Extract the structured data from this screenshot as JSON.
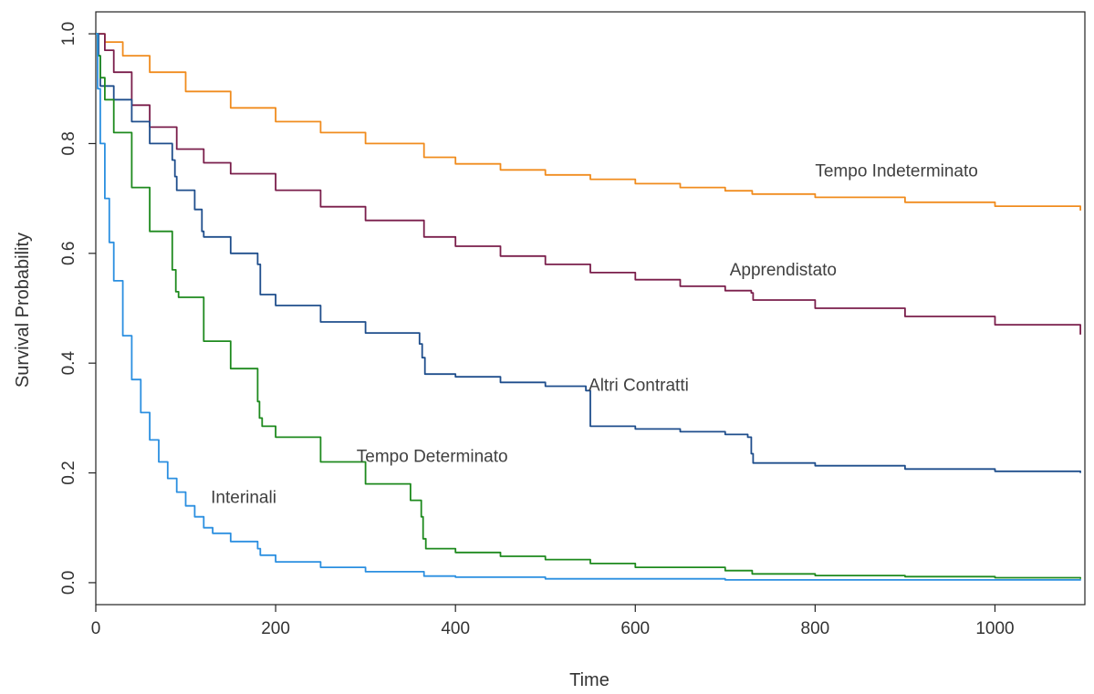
{
  "chart_data": {
    "type": "line",
    "title": "",
    "xlabel": "Time",
    "ylabel": "Survival Probability",
    "xlim": [
      0,
      1100
    ],
    "ylim": [
      -0.04,
      1.04
    ],
    "xticks": [
      0,
      200,
      400,
      600,
      800,
      1000
    ],
    "yticks": [
      0.0,
      0.2,
      0.4,
      0.6,
      0.8,
      1.0
    ],
    "xtick_labels": [
      "0",
      "200",
      "400",
      "600",
      "800",
      "1000"
    ],
    "ytick_labels": [
      "0.0",
      "0.2",
      "0.4",
      "0.6",
      "0.8",
      "1.0"
    ],
    "grid": false,
    "legend": "none (curves labeled directly)",
    "series": [
      {
        "name": "Tempo Indeterminato",
        "color": "#f08c1e",
        "label_anchor": [
          800,
          0.74
        ],
        "x": [
          0,
          10,
          30,
          60,
          100,
          150,
          200,
          250,
          300,
          365,
          400,
          450,
          500,
          550,
          600,
          650,
          700,
          730,
          800,
          900,
          1000,
          1095
        ],
        "y": [
          1.0,
          0.985,
          0.96,
          0.93,
          0.895,
          0.865,
          0.84,
          0.82,
          0.8,
          0.775,
          0.763,
          0.752,
          0.743,
          0.735,
          0.727,
          0.72,
          0.714,
          0.708,
          0.702,
          0.693,
          0.686,
          0.678
        ]
      },
      {
        "name": "Apprendistato",
        "color": "#7a1e4b",
        "label_anchor": [
          705,
          0.56
        ],
        "x": [
          0,
          10,
          20,
          40,
          60,
          90,
          120,
          150,
          200,
          250,
          300,
          365,
          400,
          450,
          500,
          550,
          600,
          650,
          700,
          729,
          731,
          800,
          900,
          1000,
          1095
        ],
        "y": [
          1.0,
          0.97,
          0.93,
          0.87,
          0.83,
          0.79,
          0.765,
          0.745,
          0.715,
          0.685,
          0.66,
          0.63,
          0.613,
          0.595,
          0.58,
          0.565,
          0.552,
          0.54,
          0.532,
          0.528,
          0.515,
          0.5,
          0.485,
          0.47,
          0.452
        ]
      },
      {
        "name": "Altri Contratti",
        "color": "#1f4e8c",
        "label_anchor": [
          548,
          0.35
        ],
        "x": [
          0,
          3,
          5,
          20,
          40,
          60,
          85,
          88,
          90,
          110,
          118,
          120,
          150,
          180,
          183,
          200,
          250,
          300,
          360,
          363,
          366,
          400,
          450,
          500,
          545,
          550,
          600,
          650,
          700,
          725,
          729,
          731,
          800,
          900,
          1000,
          1095
        ],
        "y": [
          1.0,
          0.96,
          0.905,
          0.88,
          0.84,
          0.8,
          0.77,
          0.74,
          0.715,
          0.68,
          0.64,
          0.63,
          0.6,
          0.58,
          0.525,
          0.505,
          0.475,
          0.455,
          0.435,
          0.41,
          0.38,
          0.375,
          0.365,
          0.358,
          0.35,
          0.285,
          0.28,
          0.275,
          0.27,
          0.265,
          0.235,
          0.218,
          0.213,
          0.207,
          0.203,
          0.2
        ]
      },
      {
        "name": "Tempo Determinato",
        "color": "#1e8a1e",
        "label_anchor": [
          290,
          0.22
        ],
        "x": [
          0,
          2,
          5,
          10,
          20,
          40,
          60,
          85,
          89,
          92,
          120,
          150,
          180,
          182,
          185,
          200,
          250,
          300,
          350,
          362,
          364,
          367,
          400,
          450,
          500,
          550,
          600,
          700,
          730,
          800,
          900,
          1000,
          1095
        ],
        "y": [
          1.0,
          0.96,
          0.92,
          0.88,
          0.82,
          0.72,
          0.64,
          0.57,
          0.53,
          0.52,
          0.44,
          0.39,
          0.33,
          0.3,
          0.285,
          0.265,
          0.22,
          0.18,
          0.15,
          0.12,
          0.08,
          0.062,
          0.055,
          0.048,
          0.042,
          0.035,
          0.028,
          0.022,
          0.016,
          0.013,
          0.011,
          0.009,
          0.007
        ]
      },
      {
        "name": "Interinali",
        "color": "#2b8fe0",
        "label_anchor": [
          128,
          0.145
        ],
        "x": [
          0,
          2,
          5,
          10,
          15,
          20,
          30,
          40,
          50,
          60,
          70,
          80,
          90,
          100,
          110,
          120,
          130,
          150,
          180,
          183,
          200,
          250,
          300,
          365,
          400,
          500,
          700,
          1095
        ],
        "y": [
          1.0,
          0.9,
          0.8,
          0.7,
          0.62,
          0.55,
          0.45,
          0.37,
          0.31,
          0.26,
          0.22,
          0.19,
          0.165,
          0.14,
          0.12,
          0.1,
          0.09,
          0.075,
          0.062,
          0.05,
          0.038,
          0.028,
          0.02,
          0.012,
          0.01,
          0.007,
          0.005,
          0.004
        ]
      }
    ]
  }
}
